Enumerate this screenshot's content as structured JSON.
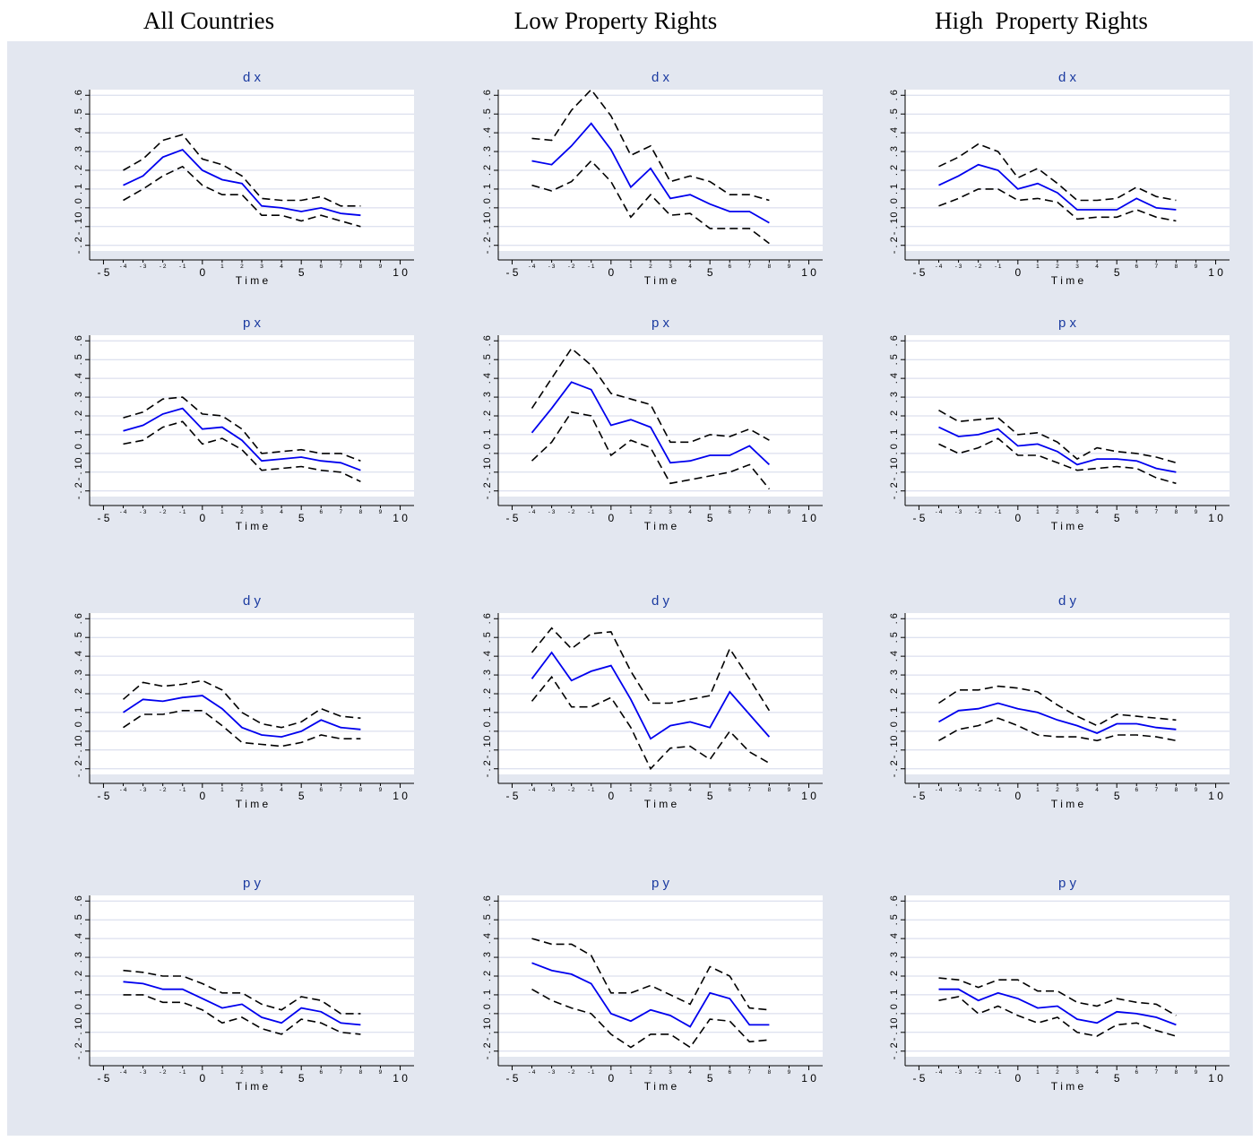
{
  "columns": [
    "All Countries",
    "Low Property Rights",
    "High  Property Rights"
  ],
  "colors": {
    "point": "#0000ee",
    "band": "#000000",
    "plot_bg": "#ffffff",
    "panel_bg": "#e3e7f0",
    "grid": "#d4d8ea"
  },
  "axis": {
    "xlabel": "T i m e",
    "major_ticks": [
      "- 5",
      "0",
      "5",
      "1 0"
    ],
    "minor_ticks": [
      "- 4",
      "- 3",
      "- 2",
      "- 1",
      "1",
      "2",
      "3",
      "4",
      "6",
      "7",
      "8",
      "9"
    ],
    "y_ticks": [
      "- . 2",
      "- . 1",
      "0 . 0",
      ". 1",
      ". 2",
      ". 3",
      ". 4",
      ". 5",
      ". 6"
    ],
    "xlim": [
      -5.7,
      10.7
    ],
    "ylim": [
      -0.23,
      0.63
    ]
  },
  "chart_data": [
    {
      "type": "line",
      "title": "d x",
      "column": "All Countries",
      "x": [
        -4,
        -3,
        -2,
        -1,
        0,
        1,
        2,
        3,
        4,
        5,
        6,
        7,
        8
      ],
      "series": [
        {
          "values": [
            0.2,
            0.26,
            0.36,
            0.39,
            0.26,
            0.23,
            0.17,
            0.05,
            0.04,
            0.04,
            0.06,
            0.01,
            0.01
          ]
        },
        {
          "values": [
            0.12,
            0.17,
            0.27,
            0.31,
            0.2,
            0.15,
            0.13,
            0.01,
            0.0,
            -0.02,
            0.0,
            -0.03,
            -0.04
          ]
        },
        {
          "values": [
            0.04,
            0.1,
            0.17,
            0.22,
            0.12,
            0.07,
            0.07,
            -0.04,
            -0.04,
            -0.07,
            -0.04,
            -0.07,
            -0.1
          ]
        }
      ]
    },
    {
      "type": "line",
      "title": "d x",
      "column": "Low Property Rights",
      "x": [
        -4,
        -3,
        -2,
        -1,
        0,
        1,
        2,
        3,
        4,
        5,
        6,
        7,
        8
      ],
      "series": [
        {
          "values": [
            0.37,
            0.36,
            0.52,
            0.63,
            0.49,
            0.28,
            0.33,
            0.14,
            0.17,
            0.14,
            0.07,
            0.07,
            0.04
          ]
        },
        {
          "values": [
            0.25,
            0.23,
            0.33,
            0.45,
            0.31,
            0.11,
            0.21,
            0.05,
            0.07,
            0.02,
            -0.02,
            -0.02,
            -0.08
          ]
        },
        {
          "values": [
            0.12,
            0.09,
            0.14,
            0.25,
            0.14,
            -0.05,
            0.07,
            -0.04,
            -0.03,
            -0.11,
            -0.11,
            -0.11,
            -0.19
          ]
        }
      ]
    },
    {
      "type": "line",
      "title": "d x",
      "column": "High  Property Rights",
      "x": [
        -4,
        -3,
        -2,
        -1,
        0,
        1,
        2,
        3,
        4,
        5,
        6,
        7,
        8
      ],
      "series": [
        {
          "values": [
            0.22,
            0.27,
            0.34,
            0.3,
            0.16,
            0.21,
            0.13,
            0.04,
            0.04,
            0.05,
            0.11,
            0.06,
            0.04
          ]
        },
        {
          "values": [
            0.12,
            0.17,
            0.23,
            0.2,
            0.1,
            0.13,
            0.08,
            -0.01,
            -0.01,
            -0.01,
            0.05,
            0.0,
            -0.01
          ]
        },
        {
          "values": [
            0.01,
            0.05,
            0.1,
            0.1,
            0.04,
            0.05,
            0.03,
            -0.06,
            -0.05,
            -0.05,
            -0.01,
            -0.05,
            -0.07
          ]
        }
      ]
    },
    {
      "type": "line",
      "title": "p x",
      "column": "All Countries",
      "x": [
        -4,
        -3,
        -2,
        -1,
        0,
        1,
        2,
        3,
        4,
        5,
        6,
        7,
        8
      ],
      "series": [
        {
          "values": [
            0.19,
            0.22,
            0.29,
            0.3,
            0.21,
            0.2,
            0.13,
            0.0,
            0.01,
            0.02,
            0.0,
            0.0,
            -0.04
          ]
        },
        {
          "values": [
            0.12,
            0.15,
            0.21,
            0.24,
            0.13,
            0.14,
            0.07,
            -0.04,
            -0.03,
            -0.02,
            -0.04,
            -0.05,
            -0.09
          ]
        },
        {
          "values": [
            0.05,
            0.07,
            0.14,
            0.17,
            0.05,
            0.08,
            0.02,
            -0.09,
            -0.08,
            -0.07,
            -0.09,
            -0.1,
            -0.15
          ]
        }
      ]
    },
    {
      "type": "line",
      "title": "p x",
      "column": "Low Property Rights",
      "x": [
        -4,
        -3,
        -2,
        -1,
        0,
        1,
        2,
        3,
        4,
        5,
        6,
        7,
        8
      ],
      "series": [
        {
          "values": [
            0.24,
            0.4,
            0.56,
            0.47,
            0.32,
            0.29,
            0.26,
            0.06,
            0.06,
            0.1,
            0.09,
            0.13,
            0.07
          ]
        },
        {
          "values": [
            0.11,
            0.24,
            0.38,
            0.34,
            0.15,
            0.18,
            0.14,
            -0.05,
            -0.04,
            -0.01,
            -0.01,
            0.04,
            -0.06
          ]
        },
        {
          "values": [
            -0.04,
            0.06,
            0.22,
            0.2,
            -0.01,
            0.07,
            0.03,
            -0.16,
            -0.14,
            -0.12,
            -0.1,
            -0.06,
            -0.19
          ]
        }
      ]
    },
    {
      "type": "line",
      "title": "p x",
      "column": "High  Property Rights",
      "x": [
        -4,
        -3,
        -2,
        -1,
        0,
        1,
        2,
        3,
        4,
        5,
        6,
        7,
        8
      ],
      "series": [
        {
          "values": [
            0.23,
            0.17,
            0.18,
            0.19,
            0.1,
            0.11,
            0.06,
            -0.03,
            0.03,
            0.01,
            0.0,
            -0.02,
            -0.05
          ]
        },
        {
          "values": [
            0.14,
            0.09,
            0.1,
            0.13,
            0.04,
            0.05,
            0.01,
            -0.06,
            -0.03,
            -0.03,
            -0.04,
            -0.08,
            -0.1
          ]
        },
        {
          "values": [
            0.05,
            0.0,
            0.03,
            0.08,
            -0.01,
            -0.01,
            -0.05,
            -0.09,
            -0.08,
            -0.07,
            -0.08,
            -0.13,
            -0.16
          ]
        }
      ]
    },
    {
      "type": "line",
      "title": "d y",
      "column": "All Countries",
      "x": [
        -4,
        -3,
        -2,
        -1,
        0,
        1,
        2,
        3,
        4,
        5,
        6,
        7,
        8
      ],
      "series": [
        {
          "values": [
            0.17,
            0.26,
            0.24,
            0.25,
            0.27,
            0.22,
            0.1,
            0.04,
            0.02,
            0.05,
            0.12,
            0.08,
            0.07
          ]
        },
        {
          "values": [
            0.1,
            0.17,
            0.16,
            0.18,
            0.19,
            0.12,
            0.02,
            -0.02,
            -0.03,
            0.0,
            0.06,
            0.02,
            0.01
          ]
        },
        {
          "values": [
            0.02,
            0.09,
            0.09,
            0.11,
            0.11,
            0.03,
            -0.06,
            -0.07,
            -0.08,
            -0.06,
            -0.02,
            -0.04,
            -0.04
          ]
        }
      ]
    },
    {
      "type": "line",
      "title": "d y",
      "column": "Low Property Rights",
      "x": [
        -4,
        -3,
        -2,
        -1,
        0,
        1,
        2,
        3,
        4,
        5,
        6,
        7,
        8
      ],
      "series": [
        {
          "values": [
            0.42,
            0.55,
            0.44,
            0.52,
            0.53,
            0.32,
            0.15,
            0.15,
            0.17,
            0.19,
            0.44,
            0.28,
            0.11
          ]
        },
        {
          "values": [
            0.28,
            0.42,
            0.27,
            0.32,
            0.35,
            0.17,
            -0.04,
            0.03,
            0.05,
            0.02,
            0.21,
            0.09,
            -0.03
          ]
        },
        {
          "values": [
            0.16,
            0.29,
            0.13,
            0.13,
            0.18,
            0.02,
            -0.2,
            -0.09,
            -0.08,
            -0.15,
            0.0,
            -0.11,
            -0.17
          ]
        }
      ]
    },
    {
      "type": "line",
      "title": "d y",
      "column": "High  Property Rights",
      "x": [
        -4,
        -3,
        -2,
        -1,
        0,
        1,
        2,
        3,
        4,
        5,
        6,
        7,
        8
      ],
      "series": [
        {
          "values": [
            0.15,
            0.22,
            0.22,
            0.24,
            0.23,
            0.21,
            0.14,
            0.08,
            0.03,
            0.09,
            0.08,
            0.07,
            0.06
          ]
        },
        {
          "values": [
            0.05,
            0.11,
            0.12,
            0.15,
            0.12,
            0.1,
            0.06,
            0.03,
            -0.01,
            0.04,
            0.04,
            0.02,
            0.01
          ]
        },
        {
          "values": [
            -0.05,
            0.01,
            0.03,
            0.07,
            0.03,
            -0.02,
            -0.03,
            -0.03,
            -0.05,
            -0.02,
            -0.02,
            -0.03,
            -0.05
          ]
        }
      ]
    },
    {
      "type": "line",
      "title": "p y",
      "column": "All Countries",
      "x": [
        -4,
        -3,
        -2,
        -1,
        0,
        1,
        2,
        3,
        4,
        5,
        6,
        7,
        8
      ],
      "series": [
        {
          "values": [
            0.23,
            0.22,
            0.2,
            0.2,
            0.16,
            0.11,
            0.11,
            0.05,
            0.02,
            0.09,
            0.07,
            0.0,
            0.0
          ]
        },
        {
          "values": [
            0.17,
            0.16,
            0.13,
            0.13,
            0.08,
            0.03,
            0.05,
            -0.02,
            -0.05,
            0.03,
            0.01,
            -0.05,
            -0.06
          ]
        },
        {
          "values": [
            0.1,
            0.1,
            0.06,
            0.06,
            0.02,
            -0.05,
            -0.02,
            -0.08,
            -0.11,
            -0.03,
            -0.05,
            -0.1,
            -0.11
          ]
        }
      ]
    },
    {
      "type": "line",
      "title": "p y",
      "column": "Low Property Rights",
      "x": [
        -4,
        -3,
        -2,
        -1,
        0,
        1,
        2,
        3,
        4,
        5,
        6,
        7,
        8
      ],
      "series": [
        {
          "values": [
            0.4,
            0.37,
            0.37,
            0.31,
            0.11,
            0.11,
            0.15,
            0.1,
            0.05,
            0.25,
            0.2,
            0.03,
            0.02
          ]
        },
        {
          "values": [
            0.27,
            0.23,
            0.21,
            0.16,
            0.0,
            -0.04,
            0.02,
            -0.01,
            -0.07,
            0.11,
            0.08,
            -0.06,
            -0.06
          ]
        },
        {
          "values": [
            0.13,
            0.07,
            0.03,
            0.0,
            -0.11,
            -0.18,
            -0.11,
            -0.11,
            -0.18,
            -0.03,
            -0.04,
            -0.15,
            -0.14
          ]
        }
      ]
    },
    {
      "type": "line",
      "title": "p y",
      "column": "High  Property Rights",
      "x": [
        -4,
        -3,
        -2,
        -1,
        0,
        1,
        2,
        3,
        4,
        5,
        6,
        7,
        8
      ],
      "series": [
        {
          "values": [
            0.19,
            0.18,
            0.14,
            0.18,
            0.18,
            0.12,
            0.12,
            0.06,
            0.04,
            0.08,
            0.06,
            0.05,
            -0.01
          ]
        },
        {
          "values": [
            0.13,
            0.13,
            0.07,
            0.11,
            0.08,
            0.03,
            0.04,
            -0.03,
            -0.05,
            0.01,
            0.0,
            -0.02,
            -0.06
          ]
        },
        {
          "values": [
            0.07,
            0.09,
            0.0,
            0.04,
            -0.01,
            -0.05,
            -0.02,
            -0.1,
            -0.12,
            -0.06,
            -0.05,
            -0.09,
            -0.12
          ]
        }
      ]
    }
  ]
}
